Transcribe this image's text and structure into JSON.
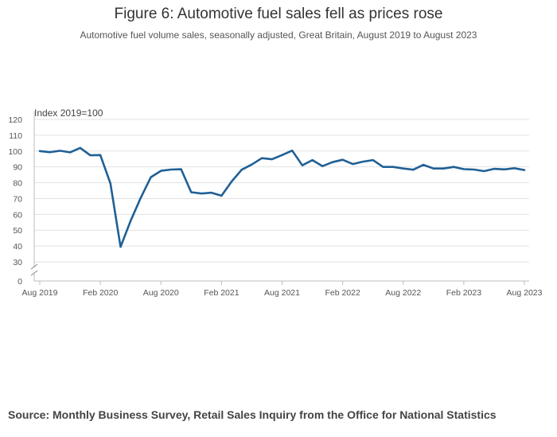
{
  "header": {
    "title": "Figure 6: Automotive fuel sales fell as prices rose",
    "subtitle": "Automotive fuel volume sales, seasonally adjusted, Great Britain, August 2019 to August 2023"
  },
  "footer": {
    "source": "Source: Monthly Business Survey, Retail Sales Inquiry from the Office for National Statistics"
  },
  "chart_data": {
    "type": "line",
    "title": "Figure 6: Automotive fuel sales fell as prices rose",
    "ylabel": "Index 2019=100",
    "xlabel": "",
    "ylim": [
      30,
      120
    ],
    "y_ticks": [
      0,
      30,
      40,
      50,
      60,
      70,
      80,
      90,
      100,
      110,
      120
    ],
    "y_axis_break": true,
    "grid": true,
    "x_tick_labels": [
      "Aug 2019",
      "Feb 2020",
      "Aug 2020",
      "Feb 2021",
      "Aug 2021",
      "Feb 2022",
      "Aug 2022",
      "Feb 2023",
      "Aug 2023"
    ],
    "x_tick_month_index": [
      0,
      6,
      12,
      18,
      24,
      30,
      36,
      42,
      48
    ],
    "series": [
      {
        "name": "Automotive fuel volume sales",
        "color": "#206095",
        "values": [
          100,
          99.3,
          100.2,
          99.2,
          102,
          97.3,
          97.5,
          79.5,
          39.5,
          56,
          70.5,
          83.5,
          87.5,
          88.3,
          88.5,
          74,
          73.2,
          73.7,
          71.8,
          80.8,
          88.2,
          91.5,
          95.5,
          94.8,
          97.5,
          100.3,
          91,
          94.3,
          90.5,
          93,
          94.5,
          91.8,
          93.3,
          94.3,
          90,
          90,
          89,
          88.2,
          91.3,
          89,
          89,
          90,
          88.6,
          88.3,
          87.3,
          88.8,
          88.4,
          89.2,
          88
        ]
      }
    ]
  }
}
